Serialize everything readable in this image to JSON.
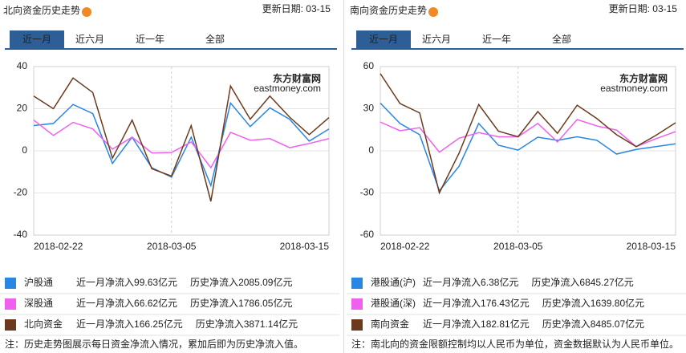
{
  "chart_data": [
    {
      "type": "line",
      "title": "北向资金历史走势",
      "update": "更新日期: 03-15",
      "tabs": [
        "近一月",
        "近六月",
        "近一年",
        "全部"
      ],
      "active_tab": 0,
      "watermark": [
        "东方财富网",
        "eastmoney.com"
      ],
      "categories": [
        "2018-02-22",
        null,
        null,
        null,
        null,
        null,
        null,
        "2018-03-05",
        null,
        null,
        null,
        null,
        null,
        null,
        null,
        "2018-03-15"
      ],
      "ylim": [
        -40,
        40
      ],
      "yticks": [
        -40,
        -20,
        0,
        20,
        40
      ],
      "grid": true,
      "series": [
        {
          "name": "沪股通",
          "color": "#2a86e0",
          "values": [
            12,
            13,
            22,
            17.7,
            -6,
            6.5,
            -8,
            -12.5,
            6.5,
            -16.5,
            22.7,
            11.5,
            20.4,
            15,
            4.6,
            10.4
          ],
          "month_label": "近一月净流入",
          "month_net": "99.63亿元",
          "hist_label": "历史净流入",
          "hist_net": "2085.09亿元"
        },
        {
          "name": "深股通",
          "color": "#f060f0",
          "values": [
            14.6,
            7.3,
            13.5,
            10.4,
            0.8,
            6.5,
            -1,
            -0.8,
            4.2,
            -8,
            8.8,
            5,
            5.8,
            1.5,
            3.5,
            5.8
          ],
          "month_label": "近一月净流入",
          "month_net": "66.62亿元",
          "hist_label": "历史净流入",
          "hist_net": "1786.05亿元"
        },
        {
          "name": "北向资金",
          "color": "#6b3a1c",
          "values": [
            26,
            20,
            34.6,
            27.7,
            -3.5,
            14.6,
            -8.5,
            -12,
            12,
            -24,
            30.8,
            15,
            26,
            16,
            7.7,
            15.8
          ],
          "month_label": "近一月净流入",
          "month_net": "166.25亿元",
          "hist_label": "历史净流入",
          "hist_net": "3871.14亿元"
        }
      ],
      "note": "注：历史走势图展示每日资金净流入情况，累加后即为历史净流入值。"
    },
    {
      "type": "line",
      "title": "南向资金历史走势",
      "update": "更新日期: 03-15",
      "tabs": [
        "近一月",
        "近六月",
        "近一年",
        "全部"
      ],
      "active_tab": 0,
      "watermark": [
        "东方财富网",
        "eastmoney.com"
      ],
      "categories": [
        "2018-02-22",
        null,
        null,
        null,
        null,
        null,
        null,
        "2018-03-05",
        null,
        null,
        null,
        null,
        null,
        null,
        null,
        "2018-03-15"
      ],
      "ylim": [
        -60,
        60
      ],
      "yticks": [
        -60,
        -30,
        0,
        30,
        60
      ],
      "grid": true,
      "series": [
        {
          "name": "港股通(沪)",
          "color": "#2a86e0",
          "values": [
            34,
            19.5,
            11.5,
            -28.5,
            -11,
            19.5,
            4,
            0.5,
            9.7,
            7.5,
            10,
            7.5,
            -2.3,
            1,
            3,
            5
          ],
          "month_label": "近一月净流入",
          "month_net": "6.38亿元",
          "hist_label": "历史净流入",
          "hist_net": "6845.27亿元"
        },
        {
          "name": "港股通(深)",
          "color": "#f060f0",
          "values": [
            20.5,
            14.3,
            16.5,
            -1,
            9,
            13,
            10,
            10,
            19.5,
            6.3,
            22.3,
            17.7,
            14.8,
            3,
            8.6,
            13.7
          ],
          "month_label": "近一月净流入",
          "month_net": "176.43亿元",
          "hist_label": "历史净流入",
          "hist_net": "1639.80亿元"
        },
        {
          "name": "南向资金",
          "color": "#6b3a1c",
          "values": [
            55,
            33.7,
            27,
            -30,
            -1.7,
            33,
            14,
            10,
            28,
            12.5,
            32.5,
            23,
            11.5,
            3,
            11,
            20
          ],
          "month_label": "近一月净流入",
          "month_net": "182.81亿元",
          "hist_label": "历史净流入",
          "hist_net": "8485.07亿元"
        }
      ],
      "note": "注：南北向的资金限额控制均以人民币为单位，资金数据默认为人民币单位。"
    }
  ]
}
